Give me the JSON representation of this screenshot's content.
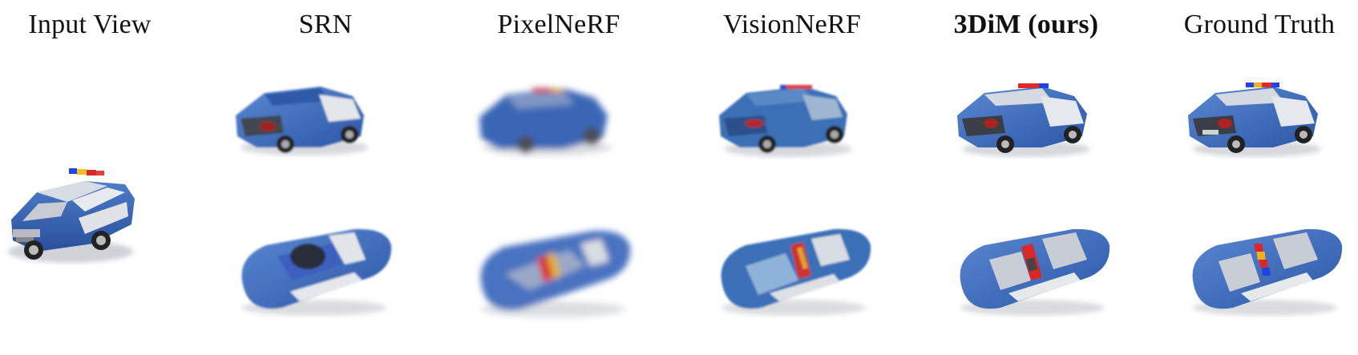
{
  "columns": [
    {
      "label": "Input View",
      "bold": false
    },
    {
      "label": "SRN",
      "bold": false
    },
    {
      "label": "PixelNeRF",
      "bold": false
    },
    {
      "label": "VisionNeRF",
      "bold": false
    },
    {
      "label": "3DiM (ours)",
      "bold": true
    },
    {
      "label": "Ground Truth",
      "bold": false
    }
  ],
  "images": [
    {
      "column": "Input View",
      "view": "input",
      "depicts": "police car",
      "blur": "none"
    },
    {
      "column": "SRN",
      "view": "rear-three-quarter",
      "depicts": "police car",
      "blur": "slight"
    },
    {
      "column": "PixelNeRF",
      "view": "rear-three-quarter",
      "depicts": "police car",
      "blur": "heavy"
    },
    {
      "column": "VisionNeRF",
      "view": "rear-three-quarter",
      "depicts": "police car",
      "blur": "slight"
    },
    {
      "column": "3DiM (ours)",
      "view": "rear-three-quarter",
      "depicts": "police car",
      "blur": "none"
    },
    {
      "column": "Ground Truth",
      "view": "rear-three-quarter",
      "depicts": "police car",
      "blur": "none"
    },
    {
      "column": "SRN",
      "view": "top-down",
      "depicts": "police car",
      "blur": "slight"
    },
    {
      "column": "PixelNeRF",
      "view": "top-down",
      "depicts": "police car",
      "blur": "heavy"
    },
    {
      "column": "VisionNeRF",
      "view": "top-down",
      "depicts": "police car",
      "blur": "slight"
    },
    {
      "column": "3DiM (ours)",
      "view": "top-down",
      "depicts": "police car",
      "blur": "none"
    },
    {
      "column": "Ground Truth",
      "view": "top-down",
      "depicts": "police car",
      "blur": "none"
    }
  ]
}
